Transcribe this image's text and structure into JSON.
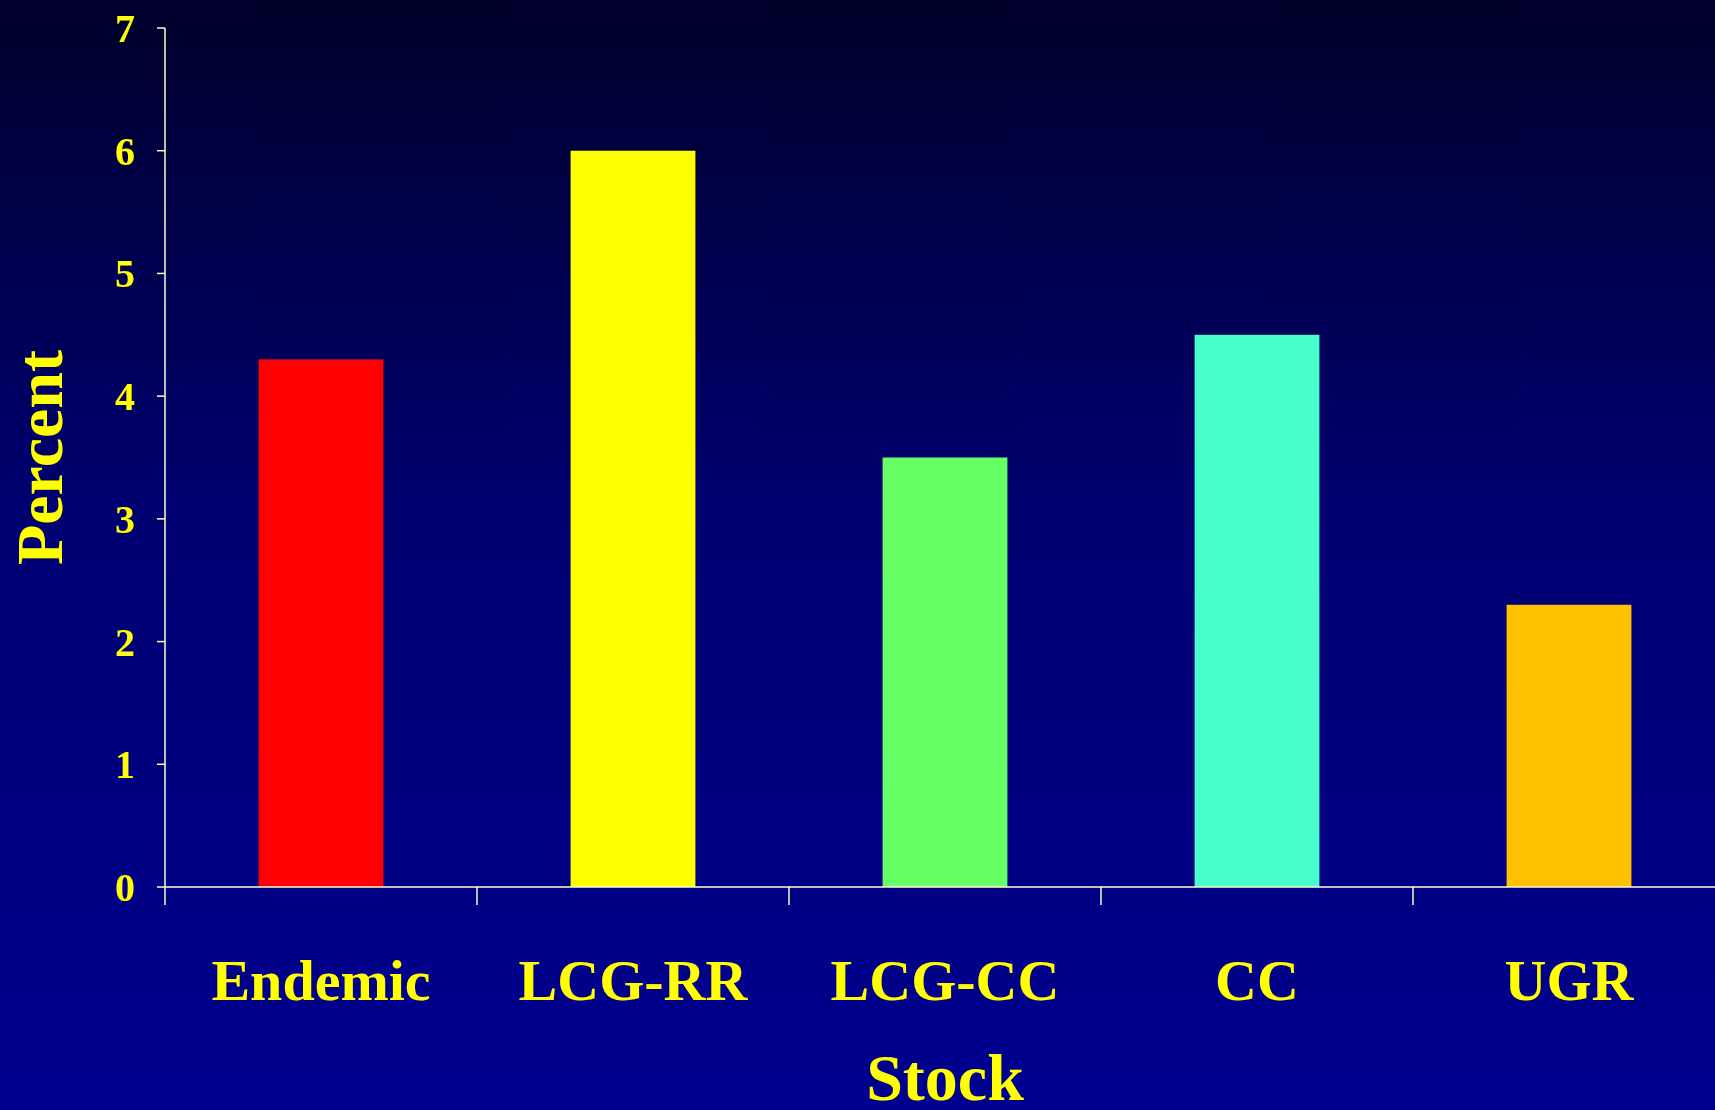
{
  "chart_data": {
    "type": "bar",
    "xlabel": "Stock",
    "ylabel": "Percent",
    "categories": [
      "Endemic",
      "LCG-RR",
      "LCG-CC",
      "CC",
      "UGR"
    ],
    "values": [
      4.3,
      6.0,
      3.5,
      4.5,
      2.3
    ],
    "colors": [
      "#ff0000",
      "#ffff00",
      "#66ff66",
      "#48ffcc",
      "#ffc000"
    ],
    "ylim": [
      0,
      7
    ],
    "yticks": [
      0,
      1,
      2,
      3,
      4,
      5,
      6,
      7
    ],
    "grid": false
  }
}
